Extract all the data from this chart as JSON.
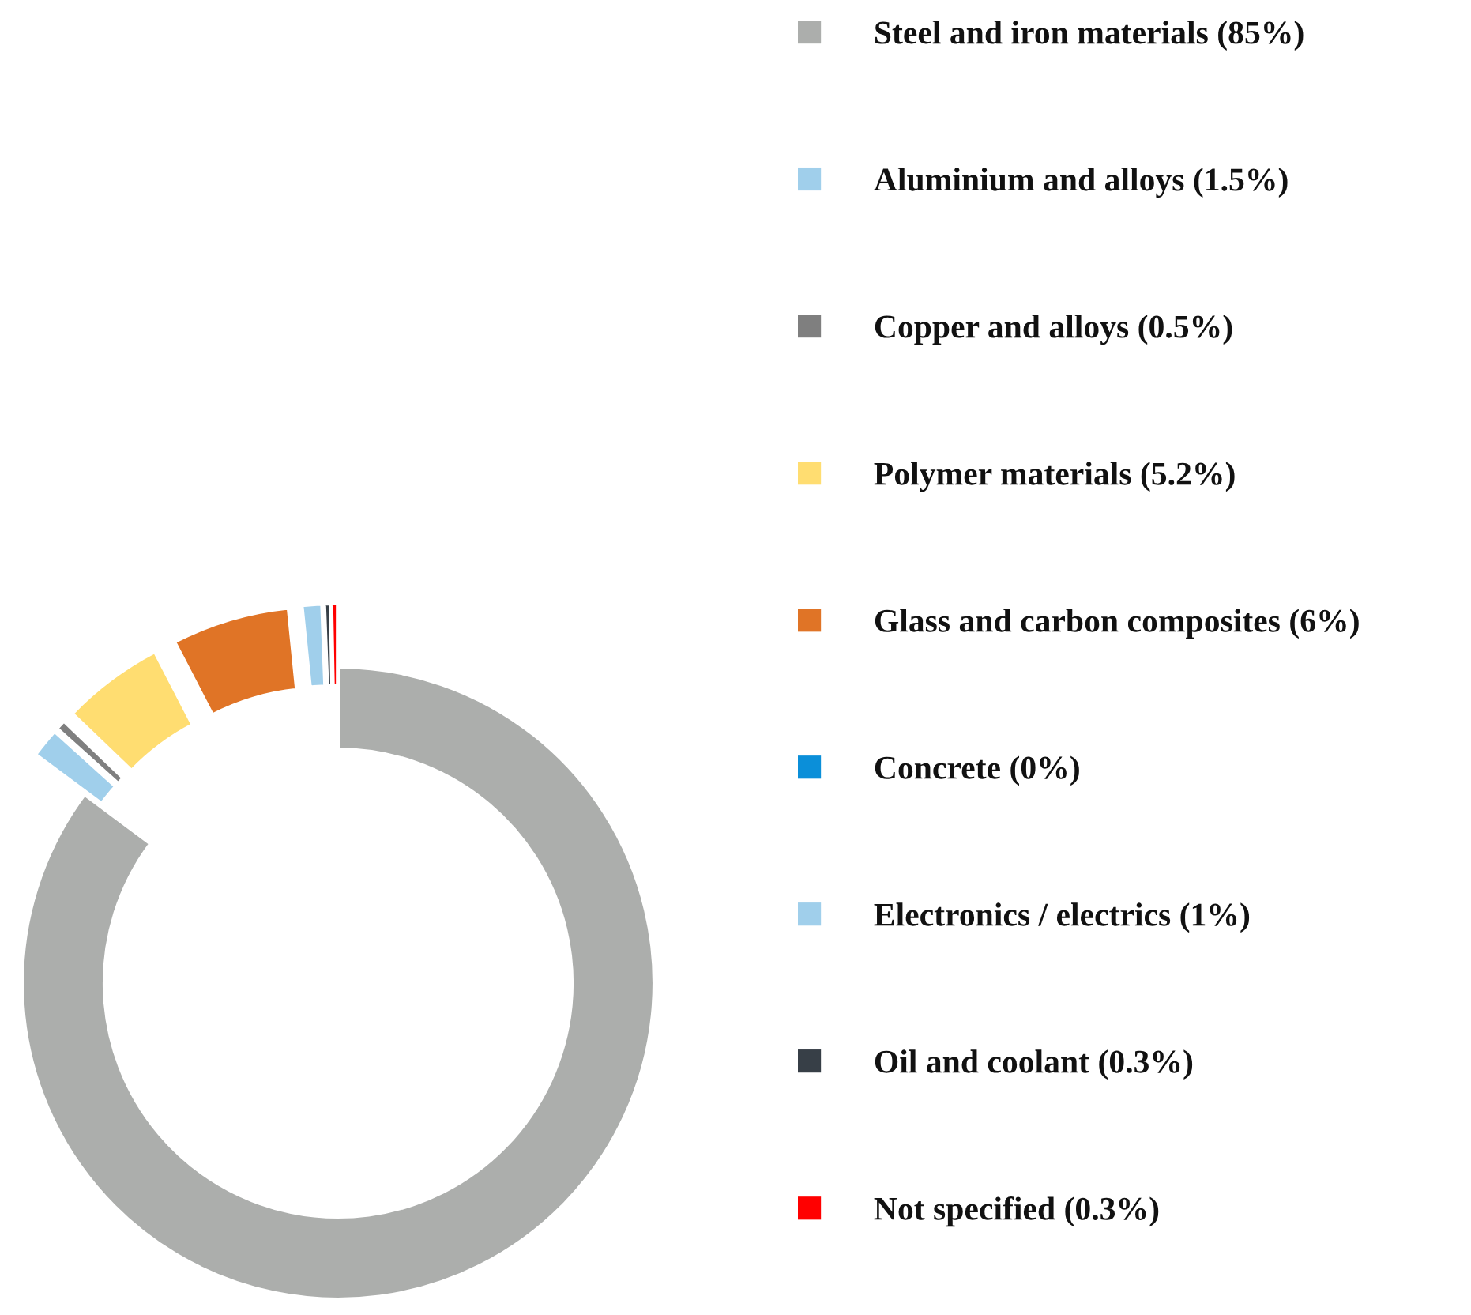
{
  "chart_data": {
    "type": "donut",
    "categories": [
      "Steel and iron materials (85%)",
      "Aluminium and alloys (1.5%)",
      "Copper and alloys (0.5%)",
      "Polymer materials (5.2%)",
      "Glass and carbon composites (6%)",
      "Concrete (0%)",
      "Electronics / electrics (1%)",
      "Oil and coolant (0.3%)",
      "Not specified (0.3%)"
    ],
    "values": [
      85,
      1.5,
      0.5,
      5.2,
      6,
      0,
      1,
      0.3,
      0.3
    ],
    "colors": [
      "#acaeac",
      "#a0cfeb",
      "#7f7f7f",
      "#ffdd71",
      "#e07426",
      "#0b8fd9",
      "#a0cfeb",
      "#373f47",
      "#ff0000"
    ],
    "legend": "right"
  }
}
